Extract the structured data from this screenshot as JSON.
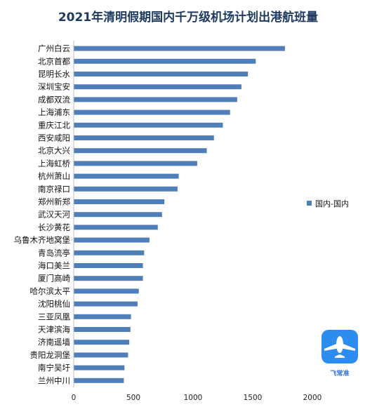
{
  "chart_data": {
    "type": "bar",
    "orientation": "horizontal",
    "title": "2021年清明假期国内千万级机场计划出港航班量",
    "categories": [
      "广州白云",
      "北京首都",
      "昆明长水",
      "深圳宝安",
      "成都双流",
      "上海浦东",
      "重庆江北",
      "西安咸阳",
      "北京大兴",
      "上海虹桥",
      "杭州萧山",
      "南京禄口",
      "郑州新郑",
      "武汉天河",
      "长沙黄花",
      "乌鲁木齐地窝堡",
      "青岛流亭",
      "海口美兰",
      "厦门高崎",
      "哈尔滨太平",
      "沈阳桃仙",
      "三亚凤凰",
      "天津滨海",
      "济南遥墙",
      "贵阳龙洞堡",
      "南宁吴圩",
      "兰州中川"
    ],
    "series": [
      {
        "name": "国内-国内",
        "values": [
          1770,
          1525,
          1460,
          1405,
          1370,
          1310,
          1250,
          1175,
          1115,
          1035,
          880,
          870,
          760,
          740,
          705,
          635,
          590,
          580,
          580,
          545,
          535,
          480,
          475,
          465,
          455,
          425,
          420
        ]
      }
    ],
    "xlim": [
      0,
      2000
    ],
    "xticks": [
      "0",
      "500",
      "1000",
      "1500",
      "2000"
    ],
    "grid": false,
    "legend_position": "right",
    "bar_color": "#4f7eb8"
  },
  "logo": {
    "text": "飞常准",
    "icon": "airplane-icon",
    "color": "#2c8cf0"
  }
}
